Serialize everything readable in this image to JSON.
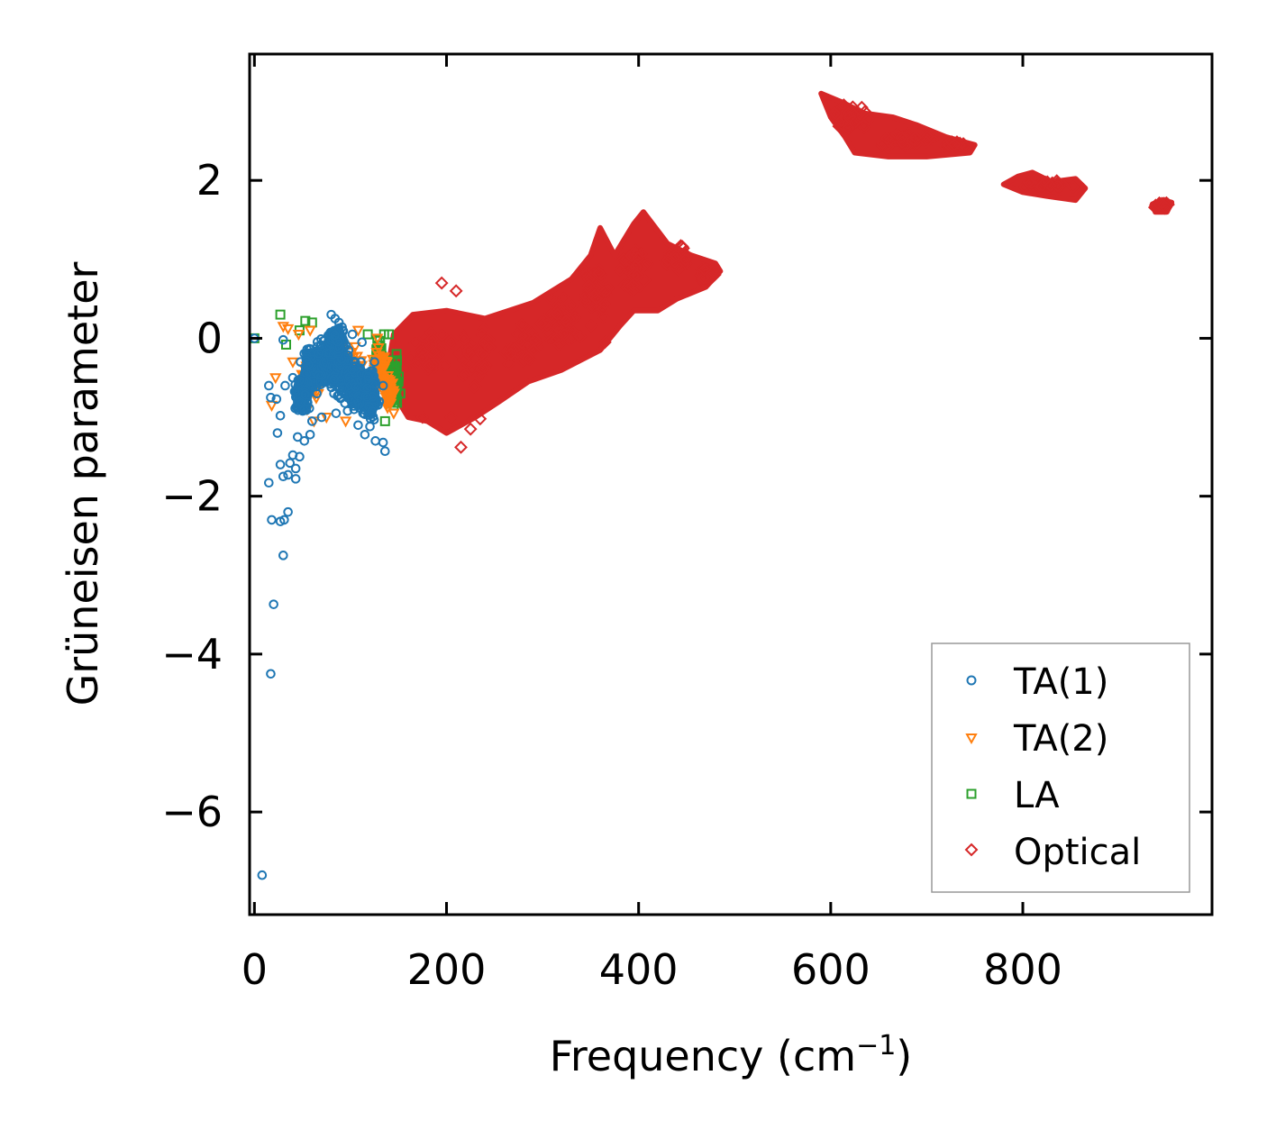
{
  "chart_data": {
    "type": "scatter",
    "xlabel": "Frequency (cm",
    "xlabel_sup": "−1",
    "xlabel_end": ")",
    "ylabel": "Grüneisen parameter",
    "xlim": [
      -5,
      997
    ],
    "ylim": [
      -7.3,
      3.6
    ],
    "xticks": [
      0,
      200,
      400,
      600,
      800
    ],
    "xtick_labels": [
      "0",
      "200",
      "400",
      "600",
      "800"
    ],
    "yticks": [
      2,
      0,
      -2,
      -4,
      -6
    ],
    "ytick_labels": [
      "2",
      "0",
      "−2",
      "−4",
      "−6"
    ],
    "grid": false,
    "legend_position": "lower-right",
    "series": [
      {
        "name": "TA(1)",
        "marker": "circle",
        "color": "#1f77b4",
        "points": [
          [
            0,
            0
          ],
          [
            8,
            -6.8
          ],
          [
            17,
            -4.25
          ],
          [
            20,
            -3.37
          ],
          [
            30,
            -2.75
          ],
          [
            18,
            -2.3
          ],
          [
            27,
            -2.32
          ],
          [
            31,
            -2.3
          ],
          [
            35,
            -2.2
          ],
          [
            15,
            -1.83
          ],
          [
            30,
            -1.75
          ],
          [
            35,
            -1.73
          ],
          [
            43,
            -1.78
          ],
          [
            27,
            -1.6
          ],
          [
            37,
            -1.58
          ],
          [
            43,
            -1.65
          ],
          [
            40,
            -1.48
          ],
          [
            47,
            -1.5
          ],
          [
            24,
            -1.2
          ],
          [
            52,
            -1.3
          ],
          [
            45,
            -1.25
          ],
          [
            58,
            -1.22
          ],
          [
            115,
            -1.22
          ],
          [
            126,
            -1.3
          ],
          [
            134,
            -1.32
          ],
          [
            136,
            -1.43
          ],
          [
            108,
            -1.1
          ],
          [
            97,
            -0.92
          ],
          [
            85,
            -0.95
          ],
          [
            70,
            -1.0
          ],
          [
            60,
            -1.05
          ],
          [
            15,
            -0.6
          ],
          [
            17,
            -0.75
          ],
          [
            23,
            -0.77
          ],
          [
            27,
            -0.98
          ],
          [
            32,
            -0.6
          ],
          [
            40,
            -0.5
          ],
          [
            48,
            -0.3
          ],
          [
            55,
            -0.55
          ],
          [
            62,
            -0.2
          ],
          [
            70,
            -0.4
          ],
          [
            78,
            -0.1
          ],
          [
            80,
            0.3
          ],
          [
            84,
            0.25
          ],
          [
            88,
            0.2
          ],
          [
            92,
            0.1
          ],
          [
            95,
            -0.3
          ],
          [
            100,
            -0.6
          ],
          [
            105,
            -0.35
          ],
          [
            110,
            -0.7
          ],
          [
            115,
            -0.5
          ],
          [
            120,
            -0.9
          ],
          [
            125,
            -0.3
          ],
          [
            130,
            -0.8
          ],
          [
            134,
            -0.6
          ],
          [
            30,
            -0.02
          ],
          [
            55,
            -0.8
          ],
          [
            65,
            -0.7
          ],
          [
            72,
            -0.55
          ],
          [
            90,
            -0.75
          ],
          [
            102,
            0.05
          ],
          [
            112,
            -0.05
          ],
          [
            98,
            -0.15
          ]
        ],
        "clusters": [
          [
            60,
            -0.4,
            12,
            0.35
          ],
          [
            75,
            -0.25,
            14,
            0.4
          ],
          [
            90,
            -0.4,
            14,
            0.45
          ],
          [
            105,
            -0.6,
            12,
            0.4
          ],
          [
            120,
            -0.7,
            10,
            0.45
          ],
          [
            50,
            -0.7,
            10,
            0.3
          ],
          [
            85,
            -0.05,
            10,
            0.25
          ]
        ]
      },
      {
        "name": "TA(2)",
        "marker": "triangle-down",
        "color": "#ff7f0e",
        "points": [
          [
            18,
            -0.85
          ],
          [
            22,
            -0.5
          ],
          [
            30,
            0.15
          ],
          [
            35,
            0.12
          ],
          [
            40,
            -0.3
          ],
          [
            46,
            0.05
          ],
          [
            55,
            -0.9
          ],
          [
            62,
            -1.05
          ],
          [
            75,
            -1.0
          ],
          [
            95,
            -1.05
          ],
          [
            115,
            -0.65
          ],
          [
            125,
            -0.5
          ],
          [
            138,
            -0.3
          ],
          [
            142,
            -0.6
          ],
          [
            145,
            -0.95
          ],
          [
            48,
            -0.6
          ],
          [
            68,
            -0.2
          ],
          [
            128,
            0.0
          ],
          [
            108,
            0.1
          ],
          [
            58,
            0.1
          ]
        ],
        "clusters": [
          [
            130,
            -0.4,
            10,
            0.4
          ],
          [
            140,
            -0.7,
            6,
            0.25
          ],
          [
            60,
            -0.5,
            15,
            0.3
          ],
          [
            100,
            -0.4,
            15,
            0.45
          ]
        ]
      },
      {
        "name": "LA",
        "marker": "square",
        "color": "#2ca02c",
        "points": [
          [
            0,
            0
          ],
          [
            27,
            0.3
          ],
          [
            53,
            0.22
          ],
          [
            60,
            0.2
          ],
          [
            33,
            -0.08
          ],
          [
            47,
            0.1
          ],
          [
            118,
            0.05
          ],
          [
            128,
            -0.02
          ],
          [
            135,
            0.05
          ],
          [
            140,
            0.05
          ],
          [
            148,
            -0.2
          ],
          [
            150,
            -0.55
          ],
          [
            152,
            -0.7
          ],
          [
            145,
            -0.85
          ],
          [
            141,
            -0.5
          ],
          [
            136,
            -1.05
          ],
          [
            131,
            -0.3
          ]
        ],
        "clusters": [
          [
            145,
            -0.55,
            6,
            0.35
          ],
          [
            130,
            -0.25,
            6,
            0.25
          ]
        ]
      },
      {
        "name": "Optical",
        "marker": "diamond",
        "color": "#d62728",
        "points": [
          [
            195,
            0.7
          ],
          [
            210,
            0.6
          ],
          [
            215,
            -1.38
          ],
          [
            225,
            -1.15
          ],
          [
            235,
            -1.02
          ],
          [
            365,
            -0.05
          ],
          [
            140,
            -0.8
          ],
          [
            175,
            -1.0
          ],
          [
            205,
            -1.0
          ]
        ],
        "clusters": [
          [
            180,
            -0.2,
            30,
            0.4
          ],
          [
            230,
            -0.25,
            25,
            0.45
          ],
          [
            280,
            -0.1,
            25,
            0.4
          ],
          [
            320,
            0.2,
            25,
            0.4
          ],
          [
            355,
            0.55,
            20,
            0.5
          ],
          [
            395,
            0.9,
            18,
            0.45
          ],
          [
            440,
            1.0,
            20,
            0.2
          ],
          [
            470,
            0.8,
            12,
            0.12
          ],
          [
            620,
            2.8,
            25,
            0.2
          ],
          [
            680,
            2.5,
            40,
            0.12
          ],
          [
            730,
            2.45,
            15,
            0.06
          ],
          [
            825,
            1.95,
            30,
            0.08
          ],
          [
            945,
            1.68,
            10,
            0.05
          ]
        ]
      }
    ],
    "optical_region": [
      [
        140,
        -0.3
      ],
      [
        145,
        0.05
      ],
      [
        165,
        0.3
      ],
      [
        200,
        0.35
      ],
      [
        240,
        0.25
      ],
      [
        290,
        0.45
      ],
      [
        330,
        0.75
      ],
      [
        350,
        1.05
      ],
      [
        360,
        1.4
      ],
      [
        375,
        1.05
      ],
      [
        395,
        1.45
      ],
      [
        405,
        1.6
      ],
      [
        430,
        1.2
      ],
      [
        455,
        1.05
      ],
      [
        480,
        0.95
      ],
      [
        485,
        0.85
      ],
      [
        470,
        0.65
      ],
      [
        440,
        0.5
      ],
      [
        420,
        0.35
      ],
      [
        395,
        0.35
      ],
      [
        380,
        0.15
      ],
      [
        360,
        -0.15
      ],
      [
        320,
        -0.4
      ],
      [
        285,
        -0.55
      ],
      [
        255,
        -0.8
      ],
      [
        230,
        -1.0
      ],
      [
        200,
        -1.2
      ],
      [
        180,
        -1.05
      ],
      [
        160,
        -1.0
      ],
      [
        145,
        -0.7
      ]
    ],
    "optical_islands": [
      [
        [
          590,
          3.1
        ],
        [
          610,
          3.0
        ],
        [
          635,
          2.85
        ],
        [
          665,
          2.8
        ],
        [
          690,
          2.7
        ],
        [
          720,
          2.55
        ],
        [
          750,
          2.45
        ],
        [
          745,
          2.35
        ],
        [
          700,
          2.3
        ],
        [
          660,
          2.3
        ],
        [
          625,
          2.35
        ],
        [
          615,
          2.55
        ],
        [
          600,
          2.8
        ]
      ],
      [
        [
          780,
          1.95
        ],
        [
          795,
          2.05
        ],
        [
          810,
          2.1
        ],
        [
          830,
          1.98
        ],
        [
          855,
          2.02
        ],
        [
          865,
          1.9
        ],
        [
          855,
          1.75
        ],
        [
          825,
          1.8
        ],
        [
          800,
          1.85
        ]
      ],
      [
        [
          935,
          1.7
        ],
        [
          945,
          1.75
        ],
        [
          955,
          1.72
        ],
        [
          950,
          1.6
        ],
        [
          938,
          1.6
        ]
      ]
    ]
  }
}
